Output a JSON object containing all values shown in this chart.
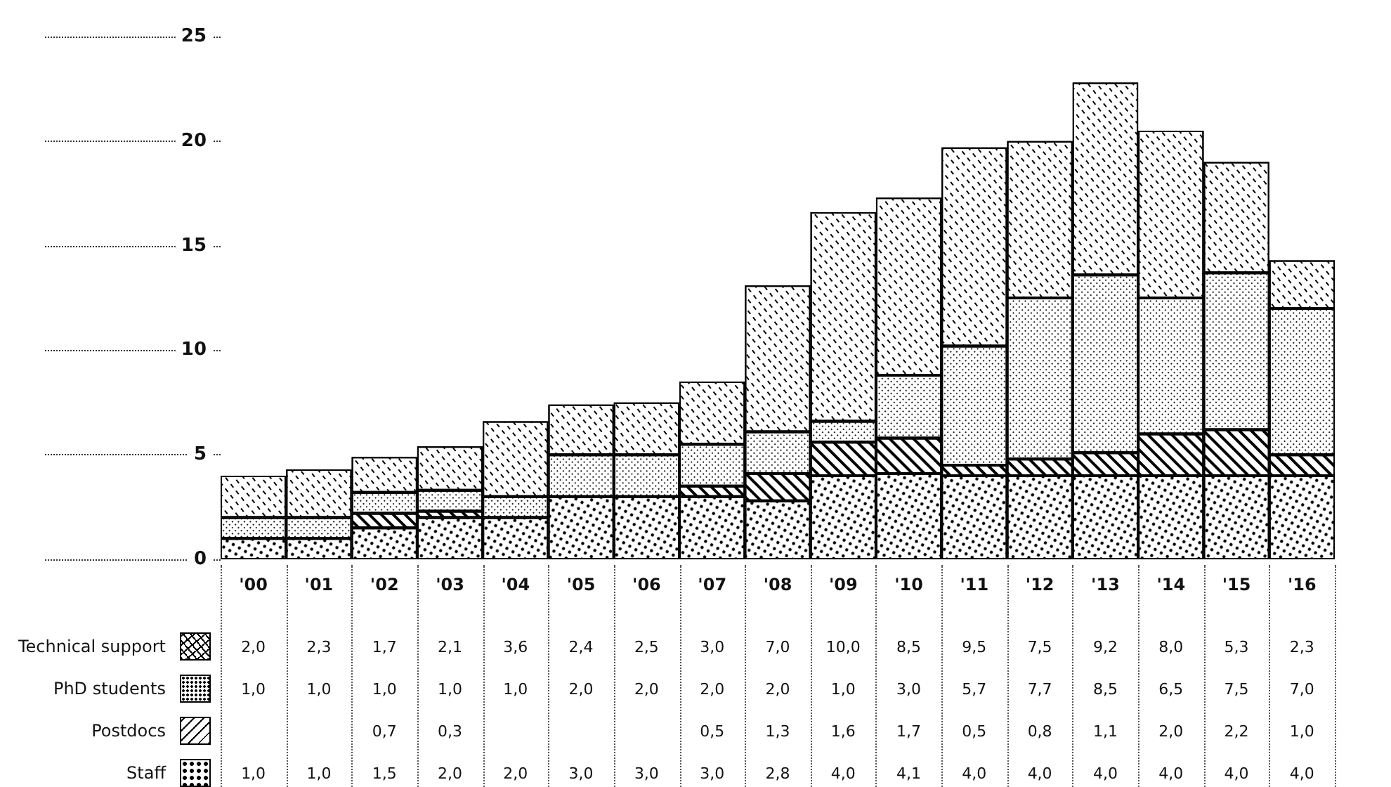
{
  "chart_data": {
    "type": "bar",
    "stacked": true,
    "categories": [
      "'00",
      "'01",
      "'02",
      "'03",
      "'04",
      "'05",
      "'06",
      "'07",
      "'08",
      "'09",
      "'10",
      "'11",
      "'12",
      "'13",
      "'14",
      "'15",
      "'16"
    ],
    "series": [
      {
        "name": "Staff",
        "color": "#ffffff",
        "values": [
          1.0,
          1.0,
          1.5,
          2.0,
          2.0,
          3.0,
          3.0,
          3.0,
          2.8,
          4.0,
          4.1,
          4.0,
          4.0,
          4.0,
          4.0,
          4.0,
          4.0
        ],
        "value_labels": [
          "1,0",
          "1,0",
          "1,5",
          "2,0",
          "2,0",
          "3,0",
          "3,0",
          "3,0",
          "2,8",
          "4,0",
          "4,1",
          "4,0",
          "4,0",
          "4,0",
          "4,0",
          "4,0",
          "4,0"
        ]
      },
      {
        "name": "Postdocs",
        "color": "#ffffff",
        "values": [
          null,
          null,
          0.7,
          0.3,
          null,
          null,
          null,
          0.5,
          1.3,
          1.6,
          1.7,
          0.5,
          0.8,
          1.1,
          2.0,
          2.2,
          1.0
        ],
        "value_labels": [
          null,
          null,
          "0,7",
          "0,3",
          null,
          null,
          null,
          "0,5",
          "1,3",
          "1,6",
          "1,7",
          "0,5",
          "0,8",
          "1,1",
          "2,0",
          "2,2",
          "1,0"
        ]
      },
      {
        "name": "PhD students",
        "color": "#ffffff",
        "values": [
          1.0,
          1.0,
          1.0,
          1.0,
          1.0,
          2.0,
          2.0,
          2.0,
          2.0,
          1.0,
          3.0,
          5.7,
          7.7,
          8.5,
          6.5,
          7.5,
          7.0
        ],
        "value_labels": [
          "1,0",
          "1,0",
          "1,0",
          "1,0",
          "1,0",
          "2,0",
          "2,0",
          "2,0",
          "2,0",
          "1,0",
          "3,0",
          "5,7",
          "7,7",
          "8,5",
          "6,5",
          "7,5",
          "7,0"
        ]
      },
      {
        "name": "Technical support",
        "color": "#ffffff",
        "values": [
          2.0,
          2.3,
          1.7,
          2.1,
          3.6,
          2.4,
          2.5,
          3.0,
          7.0,
          10.0,
          8.5,
          9.5,
          7.5,
          9.2,
          8.0,
          5.3,
          2.3
        ],
        "value_labels": [
          "2,0",
          "2,3",
          "1,7",
          "2,1",
          "3,6",
          "2,4",
          "2,5",
          "3,0",
          "7,0",
          "10,0",
          "8,5",
          "9,5",
          "7,5",
          "9,2",
          "8,0",
          "5,3",
          "2,3"
        ]
      }
    ],
    "legend": "bottom left",
    "ylim": [
      0,
      25
    ],
    "yticks": [
      0,
      5,
      10,
      15,
      20,
      25
    ],
    "grid": false
  }
}
